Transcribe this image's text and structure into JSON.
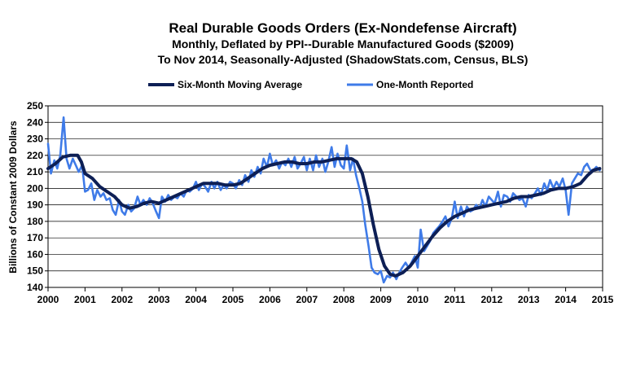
{
  "chart_data": {
    "type": "line",
    "title": "Real Durable Goods Orders (Ex-Nondefense Aircraft)",
    "subtitle1": "Monthly, Deflated by PPI--Durable Manufactured Goods ($2009)",
    "subtitle2": "To Nov 2014, Seasonally-Adjusted (ShadowStats.com, Census, BLS)",
    "xlabel": "",
    "ylabel": "Billions  of Constant 2009 Dollars",
    "x_ticks": [
      "2000",
      "2001",
      "2002",
      "2003",
      "2004",
      "2005",
      "2006",
      "2007",
      "2008",
      "2009",
      "2010",
      "2011",
      "2012",
      "2013",
      "2014",
      "2015"
    ],
    "y_ticks": [
      "140",
      "150",
      "160",
      "170",
      "180",
      "190",
      "200",
      "210",
      "220",
      "230",
      "240",
      "250"
    ],
    "xlim": [
      2000,
      2015
    ],
    "ylim": [
      140,
      250
    ],
    "grid": true,
    "legend_position": "top-center",
    "series": [
      {
        "name": "Six-Month Moving Average",
        "color": "#0d1f55",
        "points": [
          [
            2000.0,
            212
          ],
          [
            2000.2,
            215
          ],
          [
            2000.4,
            219
          ],
          [
            2000.6,
            220
          ],
          [
            2000.8,
            220
          ],
          [
            2000.9,
            216
          ],
          [
            2001.0,
            209
          ],
          [
            2001.2,
            206
          ],
          [
            2001.4,
            201
          ],
          [
            2001.6,
            198
          ],
          [
            2001.8,
            195
          ],
          [
            2002.0,
            190
          ],
          [
            2002.2,
            188
          ],
          [
            2002.4,
            189
          ],
          [
            2002.6,
            191
          ],
          [
            2002.8,
            192
          ],
          [
            2003.0,
            191
          ],
          [
            2003.2,
            193
          ],
          [
            2003.4,
            195
          ],
          [
            2003.6,
            197
          ],
          [
            2003.8,
            199
          ],
          [
            2004.0,
            201
          ],
          [
            2004.2,
            203
          ],
          [
            2004.4,
            203
          ],
          [
            2004.6,
            203
          ],
          [
            2004.8,
            202
          ],
          [
            2005.0,
            202
          ],
          [
            2005.2,
            203
          ],
          [
            2005.4,
            206
          ],
          [
            2005.6,
            209
          ],
          [
            2005.8,
            212
          ],
          [
            2006.0,
            214
          ],
          [
            2006.2,
            215
          ],
          [
            2006.4,
            216
          ],
          [
            2006.6,
            216
          ],
          [
            2006.8,
            215
          ],
          [
            2007.0,
            215
          ],
          [
            2007.2,
            216
          ],
          [
            2007.4,
            216
          ],
          [
            2007.6,
            217
          ],
          [
            2007.8,
            218
          ],
          [
            2008.0,
            218
          ],
          [
            2008.2,
            218
          ],
          [
            2008.35,
            216
          ],
          [
            2008.5,
            209
          ],
          [
            2008.65,
            195
          ],
          [
            2008.8,
            178
          ],
          [
            2008.95,
            163
          ],
          [
            2009.1,
            153
          ],
          [
            2009.25,
            148
          ],
          [
            2009.4,
            147
          ],
          [
            2009.6,
            149
          ],
          [
            2009.8,
            153
          ],
          [
            2010.0,
            159
          ],
          [
            2010.2,
            165
          ],
          [
            2010.4,
            171
          ],
          [
            2010.6,
            176
          ],
          [
            2010.8,
            180
          ],
          [
            2011.0,
            183
          ],
          [
            2011.2,
            185
          ],
          [
            2011.4,
            187
          ],
          [
            2011.6,
            188
          ],
          [
            2011.8,
            189
          ],
          [
            2012.0,
            190
          ],
          [
            2012.2,
            191
          ],
          [
            2012.4,
            192
          ],
          [
            2012.6,
            194
          ],
          [
            2012.8,
            195
          ],
          [
            2013.0,
            195
          ],
          [
            2013.2,
            196
          ],
          [
            2013.4,
            197
          ],
          [
            2013.6,
            199
          ],
          [
            2013.8,
            200
          ],
          [
            2014.0,
            200
          ],
          [
            2014.2,
            201
          ],
          [
            2014.4,
            203
          ],
          [
            2014.6,
            208
          ],
          [
            2014.75,
            211
          ],
          [
            2014.92,
            212
          ]
        ]
      },
      {
        "name": "One-Month Reported",
        "color": "#3f7be8",
        "points": [
          [
            2000.0,
            227
          ],
          [
            2000.08,
            209
          ],
          [
            2000.17,
            217
          ],
          [
            2000.25,
            212
          ],
          [
            2000.33,
            220
          ],
          [
            2000.42,
            243
          ],
          [
            2000.5,
            218
          ],
          [
            2000.58,
            212
          ],
          [
            2000.67,
            218
          ],
          [
            2000.75,
            214
          ],
          [
            2000.83,
            210
          ],
          [
            2000.92,
            214
          ],
          [
            2001.0,
            198
          ],
          [
            2001.08,
            199
          ],
          [
            2001.17,
            203
          ],
          [
            2001.25,
            193
          ],
          [
            2001.33,
            199
          ],
          [
            2001.42,
            195
          ],
          [
            2001.5,
            197
          ],
          [
            2001.58,
            193
          ],
          [
            2001.67,
            194
          ],
          [
            2001.75,
            187
          ],
          [
            2001.83,
            184
          ],
          [
            2001.92,
            193
          ],
          [
            2002.0,
            186
          ],
          [
            2002.08,
            184
          ],
          [
            2002.17,
            190
          ],
          [
            2002.25,
            186
          ],
          [
            2002.33,
            188
          ],
          [
            2002.42,
            195
          ],
          [
            2002.5,
            190
          ],
          [
            2002.58,
            193
          ],
          [
            2002.67,
            190
          ],
          [
            2002.75,
            194
          ],
          [
            2002.83,
            191
          ],
          [
            2002.92,
            186
          ],
          [
            2003.0,
            182
          ],
          [
            2003.08,
            195
          ],
          [
            2003.17,
            192
          ],
          [
            2003.25,
            196
          ],
          [
            2003.33,
            193
          ],
          [
            2003.42,
            195
          ],
          [
            2003.5,
            194
          ],
          [
            2003.58,
            197
          ],
          [
            2003.67,
            195
          ],
          [
            2003.75,
            199
          ],
          [
            2003.83,
            198
          ],
          [
            2003.92,
            200
          ],
          [
            2004.0,
            204
          ],
          [
            2004.08,
            199
          ],
          [
            2004.17,
            203
          ],
          [
            2004.25,
            201
          ],
          [
            2004.33,
            198
          ],
          [
            2004.42,
            204
          ],
          [
            2004.5,
            200
          ],
          [
            2004.58,
            204
          ],
          [
            2004.67,
            199
          ],
          [
            2004.75,
            202
          ],
          [
            2004.83,
            200
          ],
          [
            2004.92,
            204
          ],
          [
            2005.0,
            203
          ],
          [
            2005.08,
            200
          ],
          [
            2005.17,
            205
          ],
          [
            2005.25,
            202
          ],
          [
            2005.33,
            208
          ],
          [
            2005.42,
            204
          ],
          [
            2005.5,
            211
          ],
          [
            2005.58,
            207
          ],
          [
            2005.67,
            213
          ],
          [
            2005.75,
            209
          ],
          [
            2005.83,
            218
          ],
          [
            2005.92,
            213
          ],
          [
            2006.0,
            221
          ],
          [
            2006.08,
            214
          ],
          [
            2006.17,
            217
          ],
          [
            2006.25,
            212
          ],
          [
            2006.33,
            216
          ],
          [
            2006.42,
            214
          ],
          [
            2006.5,
            218
          ],
          [
            2006.58,
            213
          ],
          [
            2006.67,
            219
          ],
          [
            2006.75,
            212
          ],
          [
            2006.83,
            215
          ],
          [
            2006.92,
            219
          ],
          [
            2007.0,
            211
          ],
          [
            2007.08,
            218
          ],
          [
            2007.17,
            211
          ],
          [
            2007.25,
            220
          ],
          [
            2007.33,
            213
          ],
          [
            2007.42,
            218
          ],
          [
            2007.5,
            210
          ],
          [
            2007.58,
            216
          ],
          [
            2007.67,
            225
          ],
          [
            2007.75,
            213
          ],
          [
            2007.83,
            221
          ],
          [
            2007.92,
            214
          ],
          [
            2008.0,
            212
          ],
          [
            2008.08,
            226
          ],
          [
            2008.17,
            211
          ],
          [
            2008.25,
            218
          ],
          [
            2008.33,
            208
          ],
          [
            2008.42,
            200
          ],
          [
            2008.5,
            192
          ],
          [
            2008.58,
            178
          ],
          [
            2008.67,
            165
          ],
          [
            2008.75,
            152
          ],
          [
            2008.83,
            149
          ],
          [
            2008.92,
            148
          ],
          [
            2009.0,
            150
          ],
          [
            2009.08,
            143
          ],
          [
            2009.17,
            147
          ],
          [
            2009.25,
            146
          ],
          [
            2009.33,
            149
          ],
          [
            2009.42,
            145
          ],
          [
            2009.5,
            149
          ],
          [
            2009.58,
            152
          ],
          [
            2009.67,
            155
          ],
          [
            2009.75,
            152
          ],
          [
            2009.83,
            155
          ],
          [
            2009.92,
            159
          ],
          [
            2010.0,
            152
          ],
          [
            2010.08,
            175
          ],
          [
            2010.17,
            162
          ],
          [
            2010.25,
            165
          ],
          [
            2010.33,
            168
          ],
          [
            2010.42,
            173
          ],
          [
            2010.5,
            175
          ],
          [
            2010.58,
            177
          ],
          [
            2010.67,
            180
          ],
          [
            2010.75,
            183
          ],
          [
            2010.83,
            177
          ],
          [
            2010.92,
            182
          ],
          [
            2011.0,
            192
          ],
          [
            2011.08,
            182
          ],
          [
            2011.17,
            189
          ],
          [
            2011.25,
            183
          ],
          [
            2011.33,
            189
          ],
          [
            2011.42,
            186
          ],
          [
            2011.5,
            187
          ],
          [
            2011.58,
            190
          ],
          [
            2011.67,
            188
          ],
          [
            2011.75,
            193
          ],
          [
            2011.83,
            189
          ],
          [
            2011.92,
            195
          ],
          [
            2012.0,
            193
          ],
          [
            2012.08,
            191
          ],
          [
            2012.17,
            198
          ],
          [
            2012.25,
            189
          ],
          [
            2012.33,
            196
          ],
          [
            2012.42,
            195
          ],
          [
            2012.5,
            192
          ],
          [
            2012.58,
            197
          ],
          [
            2012.67,
            195
          ],
          [
            2012.75,
            193
          ],
          [
            2012.83,
            194
          ],
          [
            2012.92,
            189
          ],
          [
            2013.0,
            196
          ],
          [
            2013.08,
            194
          ],
          [
            2013.17,
            197
          ],
          [
            2013.25,
            200
          ],
          [
            2013.33,
            196
          ],
          [
            2013.42,
            203
          ],
          [
            2013.5,
            199
          ],
          [
            2013.58,
            205
          ],
          [
            2013.67,
            200
          ],
          [
            2013.75,
            204
          ],
          [
            2013.83,
            201
          ],
          [
            2013.92,
            206
          ],
          [
            2014.0,
            199
          ],
          [
            2014.08,
            184
          ],
          [
            2014.17,
            203
          ],
          [
            2014.25,
            206
          ],
          [
            2014.33,
            209
          ],
          [
            2014.42,
            208
          ],
          [
            2014.5,
            213
          ],
          [
            2014.58,
            215
          ],
          [
            2014.67,
            211
          ],
          [
            2014.75,
            211
          ],
          [
            2014.83,
            213
          ],
          [
            2014.92,
            211
          ]
        ]
      }
    ]
  }
}
